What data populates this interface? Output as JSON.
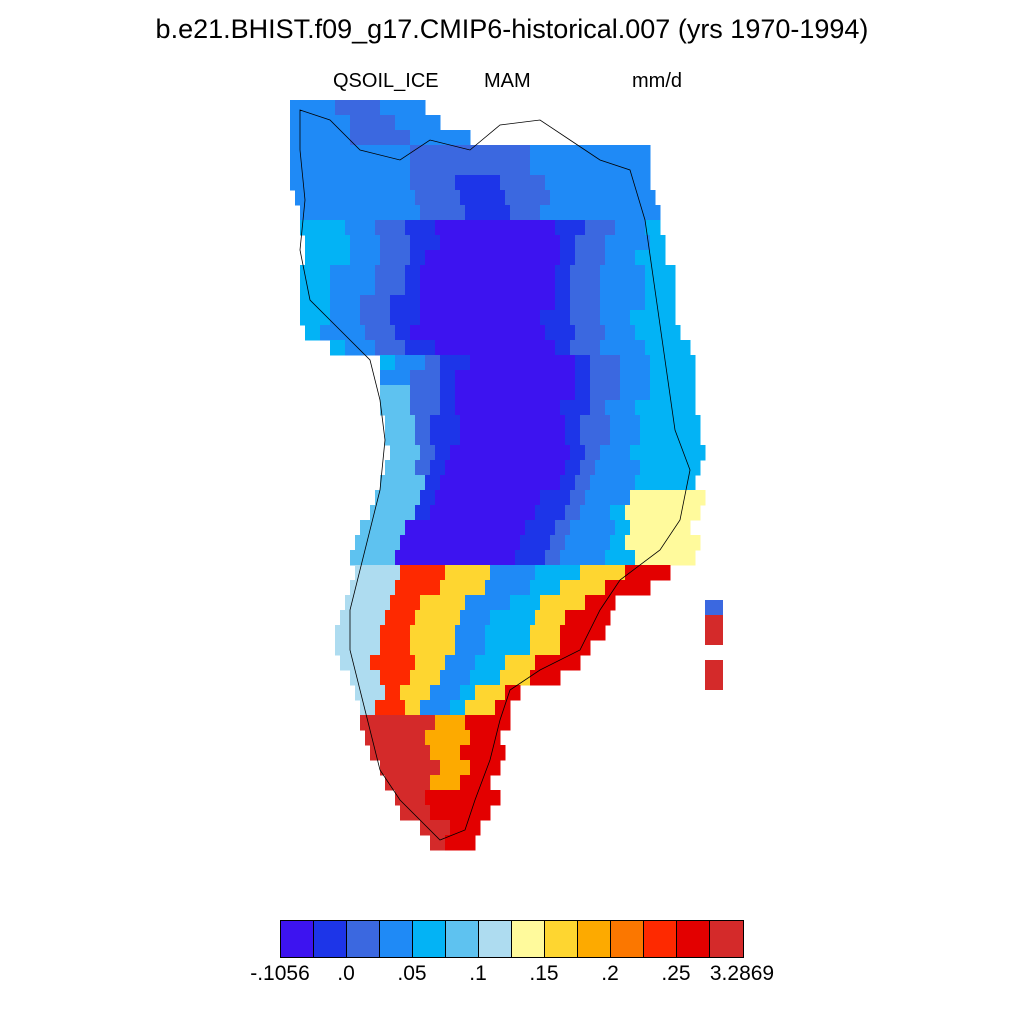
{
  "title": "b.e21.BHIST.f09_g17.CMIP6-historical.007 (yrs 1970-1994)",
  "subtitle": {
    "variable": "QSOIL_ICE",
    "season": "MAM",
    "units": "mm/d"
  },
  "colorbar": {
    "colors": [
      "#3d13f0",
      "#1d35e8",
      "#3b68e0",
      "#1f8af6",
      "#03b3f5",
      "#5ec2f0",
      "#aedcf0",
      "#fffa9c",
      "#fed630",
      "#fdaa00",
      "#fb7700",
      "#fe2900",
      "#e30000",
      "#d42a2a"
    ],
    "labels": [
      "-.1056",
      ".0",
      ".05",
      ".1",
      ".15",
      ".2",
      ".25",
      "3.2869"
    ]
  },
  "map": {
    "region": "Greenland",
    "coastline": "black",
    "missing_value_color": "#ffffff"
  }
}
